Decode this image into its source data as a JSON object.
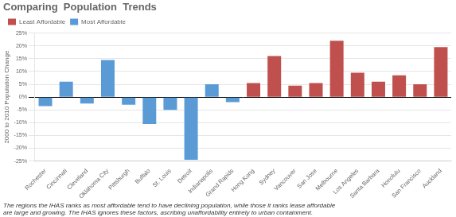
{
  "chart_data": {
    "type": "bar",
    "title": "Comparing  Population  Trends",
    "y_label": "2000 to 2010 Population Change",
    "annotations": [
      "The regions the IHAS ranks as most affordable tend to have declining population, while those it ranks lease affordable\nare large and growing. The IHAS ignores these factors, ascribing unaffordability entirely to urban containment."
    ],
    "categories": [
      "Rochester",
      "Cincinnati",
      "Cleveland",
      "Oklahoma City",
      "Pittsburgh",
      "Buffalo",
      "St. Louis",
      "Detroit",
      "Indianapolis",
      "Grand Rapids",
      "Hong Kong",
      "Sydney",
      "Vancouver",
      "San Jose",
      "Melbourne",
      "Los Angeles",
      "Santa Barbara",
      "Honolulu",
      "San Francisco",
      "Auckland"
    ],
    "series": [
      {
        "name": "Least Affordable",
        "color": "#C0504D",
        "values": [
          null,
          null,
          null,
          null,
          null,
          null,
          null,
          null,
          null,
          null,
          5.5,
          16.0,
          4.5,
          5.5,
          22.0,
          9.5,
          6.0,
          8.5,
          5.0,
          19.5
        ]
      },
      {
        "name": "Most Affordable",
        "color": "#5B9BD5",
        "values": [
          -3.5,
          6.0,
          -2.5,
          14.5,
          -3.0,
          -10.5,
          -5.0,
          -24.5,
          5.0,
          -2.0,
          null,
          null,
          null,
          null,
          null,
          null,
          null,
          null,
          null,
          null
        ]
      }
    ],
    "ylim": [
      -25,
      25
    ],
    "yticks": [
      {
        "value": -25,
        "label": "-25%"
      },
      {
        "value": -20,
        "label": "-20%"
      },
      {
        "value": -15,
        "label": "-15%"
      },
      {
        "value": -10,
        "label": "-10%"
      },
      {
        "value": -5,
        "label": "-5%"
      },
      {
        "value": 0,
        "label": "0%"
      },
      {
        "value": 5,
        "label": "5%"
      },
      {
        "value": 10,
        "label": "10%"
      },
      {
        "value": 15,
        "label": "15%"
      },
      {
        "value": 20,
        "label": "20%"
      },
      {
        "value": 25,
        "label": "25%"
      }
    ],
    "grid": true,
    "legend": "upper left"
  }
}
